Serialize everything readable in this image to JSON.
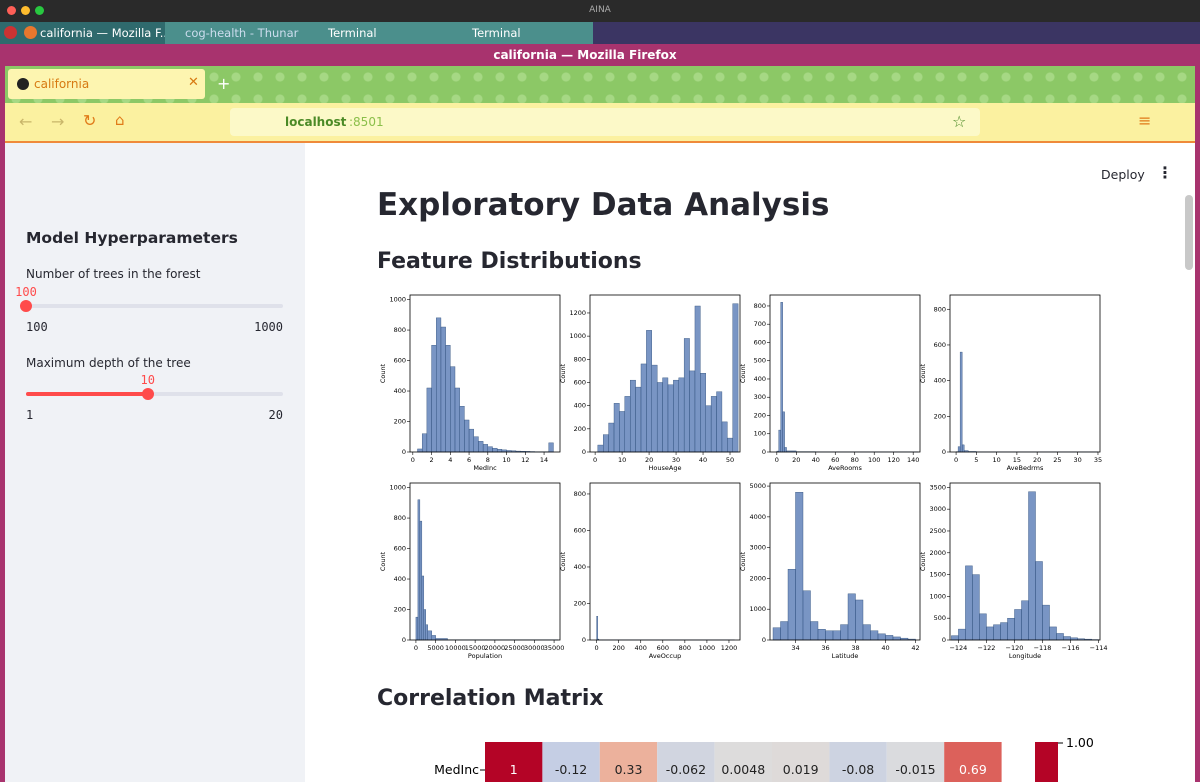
{
  "os_bar": {
    "title": "AINA"
  },
  "taskbar": {
    "items": [
      "california — Mozilla F...",
      "cog-health - Thunar",
      "Terminal",
      "Terminal"
    ]
  },
  "window": {
    "title": "california — Mozilla Firefox"
  },
  "browser": {
    "tab": "california",
    "url_host": "localhost",
    "url_port": ":8501"
  },
  "app": {
    "deploy": "Deploy",
    "title": "Exploratory Data Analysis",
    "section1": "Feature Distributions",
    "section2": "Correlation Matrix"
  },
  "sidebar": {
    "title": "Model Hyperparameters",
    "sliders": [
      {
        "label": "Number of trees in the forest",
        "value": 100,
        "min": 100,
        "max": 1000
      },
      {
        "label": "Maximum depth of the tree",
        "value": 10,
        "min": 1,
        "max": 20
      }
    ]
  },
  "chart_data": [
    {
      "type": "histogram",
      "xlabel": "MedInc",
      "ylabel": "Count",
      "color": "#4c72b0",
      "bins": [
        0.5,
        1,
        1.5,
        2,
        2.5,
        3,
        3.5,
        4,
        4.5,
        5,
        5.5,
        6,
        6.5,
        7,
        7.5,
        8,
        8.5,
        9,
        9.5,
        10,
        10.5,
        11,
        11.5,
        12,
        12.5,
        13,
        13.5,
        14,
        14.5,
        15
      ],
      "values": [
        20,
        120,
        420,
        700,
        880,
        820,
        700,
        560,
        420,
        300,
        210,
        150,
        100,
        70,
        50,
        35,
        25,
        18,
        14,
        10,
        8,
        6,
        5,
        4,
        3,
        2,
        2,
        2,
        60
      ],
      "xlim": [
        -0.3,
        15.7
      ],
      "ylim": [
        0,
        1030
      ],
      "xticks": [
        0,
        2,
        4,
        6,
        8,
        10,
        12,
        14
      ],
      "yticks": [
        0,
        200,
        400,
        600,
        800,
        1000
      ]
    },
    {
      "type": "histogram",
      "xlabel": "HouseAge",
      "ylabel": "Count",
      "color": "#4c72b0",
      "bins": [
        1,
        3,
        5,
        7,
        9,
        11,
        13,
        15,
        17,
        19,
        21,
        23,
        25,
        27,
        29,
        31,
        33,
        35,
        37,
        39,
        41,
        43,
        45,
        47,
        49,
        51,
        53
      ],
      "values": [
        60,
        150,
        250,
        420,
        350,
        480,
        620,
        560,
        760,
        1050,
        750,
        600,
        640,
        580,
        620,
        640,
        980,
        700,
        1260,
        680,
        400,
        480,
        520,
        260,
        120,
        1280
      ],
      "xlim": [
        -1.9,
        53.7
      ],
      "ylim": [
        0,
        1355
      ],
      "xticks": [
        0,
        10,
        20,
        30,
        40,
        50
      ],
      "yticks": [
        0,
        200,
        400,
        600,
        800,
        1000,
        1200
      ]
    },
    {
      "type": "histogram",
      "xlabel": "AveRooms",
      "ylabel": "Count",
      "color": "#4c72b0",
      "bins": [
        0,
        2,
        4,
        6,
        8,
        10,
        20,
        40,
        80,
        145
      ],
      "values": [
        5,
        120,
        820,
        220,
        25,
        6,
        2,
        1,
        1
      ],
      "xlim": [
        -7,
        147
      ],
      "ylim": [
        0,
        860
      ],
      "xticks": [
        0,
        20,
        40,
        60,
        80,
        100,
        120,
        140
      ],
      "yticks": [
        0,
        100,
        200,
        300,
        400,
        500,
        600,
        700,
        800
      ]
    },
    {
      "type": "histogram",
      "xlabel": "AveBedrms",
      "ylabel": "Count",
      "color": "#4c72b0",
      "bins": [
        0,
        0.5,
        1,
        1.5,
        2,
        3,
        5,
        10,
        35
      ],
      "values": [
        2,
        30,
        560,
        40,
        8,
        3,
        1,
        1
      ],
      "xlim": [
        -1.5,
        35.5
      ],
      "ylim": [
        0,
        880
      ],
      "xticks": [
        0,
        5,
        10,
        15,
        20,
        25,
        30,
        35
      ],
      "yticks": [
        0,
        200,
        400,
        600,
        800
      ]
    },
    {
      "type": "histogram",
      "xlabel": "Population",
      "ylabel": "Count",
      "color": "#4c72b0",
      "bins": [
        0,
        500,
        1000,
        1500,
        2000,
        2500,
        3000,
        4000,
        5000,
        8000,
        36000
      ],
      "values": [
        150,
        920,
        780,
        420,
        200,
        100,
        60,
        30,
        10,
        2
      ],
      "xlim": [
        -1500,
        36500
      ],
      "ylim": [
        0,
        1030
      ],
      "xticks": [
        0,
        5000,
        10000,
        15000,
        20000,
        25000,
        30000,
        35000
      ],
      "yticks": [
        0,
        200,
        400,
        600,
        800,
        1000
      ]
    },
    {
      "type": "histogram",
      "xlabel": "AveOccup",
      "ylabel": "Count",
      "color": "#4c72b0",
      "bins": [
        0,
        10,
        20,
        50,
        1250
      ],
      "values": [
        130,
        5,
        1,
        1
      ],
      "xlim": [
        -60,
        1300
      ],
      "ylim": [
        0,
        860
      ],
      "xticks": [
        0,
        200,
        400,
        600,
        800,
        1000,
        1200
      ],
      "yticks": [
        0,
        200,
        400,
        600,
        800
      ]
    },
    {
      "type": "histogram",
      "xlabel": "Latitude",
      "ylabel": "Count",
      "color": "#4c72b0",
      "bins": [
        32.5,
        33,
        33.5,
        34,
        34.5,
        35,
        35.5,
        36,
        36.5,
        37,
        37.5,
        38,
        38.5,
        39,
        39.5,
        40,
        40.5,
        41,
        41.5,
        42
      ],
      "values": [
        400,
        600,
        2300,
        4800,
        1600,
        600,
        350,
        300,
        300,
        500,
        1500,
        1300,
        500,
        300,
        200,
        150,
        100,
        60,
        30
      ],
      "xlim": [
        32.3,
        42.3
      ],
      "ylim": [
        0,
        5100
      ],
      "xticks": [
        34,
        36,
        38,
        40,
        42
      ],
      "yticks": [
        0,
        1000,
        2000,
        3000,
        4000,
        5000
      ]
    },
    {
      "type": "histogram",
      "xlabel": "Longitude",
      "ylabel": "Count",
      "color": "#4c72b0",
      "bins": [
        -124.5,
        -124,
        -123.5,
        -123,
        -122.5,
        -122,
        -121.5,
        -121,
        -120.5,
        -120,
        -119.5,
        -119,
        -118.5,
        -118,
        -117.5,
        -117,
        -116.5,
        -116,
        -115.5,
        -115,
        -114.5,
        -114
      ],
      "values": [
        100,
        250,
        1700,
        1500,
        600,
        300,
        350,
        400,
        500,
        700,
        900,
        3400,
        1800,
        800,
        300,
        150,
        80,
        50,
        30,
        20,
        10
      ],
      "xlim": [
        -124.6,
        -113.9
      ],
      "ylim": [
        0,
        3600
      ],
      "xticks": [
        {
          "value": -124,
          "label": "−124"
        },
        {
          "value": -122,
          "label": "−122"
        },
        {
          "value": -120,
          "label": "−120"
        },
        {
          "value": -118,
          "label": "−118"
        },
        {
          "value": -116,
          "label": "−116"
        },
        {
          "value": -114,
          "label": "−114"
        }
      ],
      "yticks": [
        0,
        500,
        1000,
        1500,
        2000,
        2500,
        3000,
        3500
      ]
    },
    {
      "type": "heatmap",
      "row_labels": [
        "MedInc"
      ],
      "values": [
        [
          1,
          -0.12,
          0.33,
          -0.062,
          0.0048,
          0.019,
          -0.08,
          -0.015,
          0.69
        ]
      ],
      "colorbar_ticks": [
        {
          "value": 1,
          "label": "1.00"
        }
      ]
    }
  ]
}
